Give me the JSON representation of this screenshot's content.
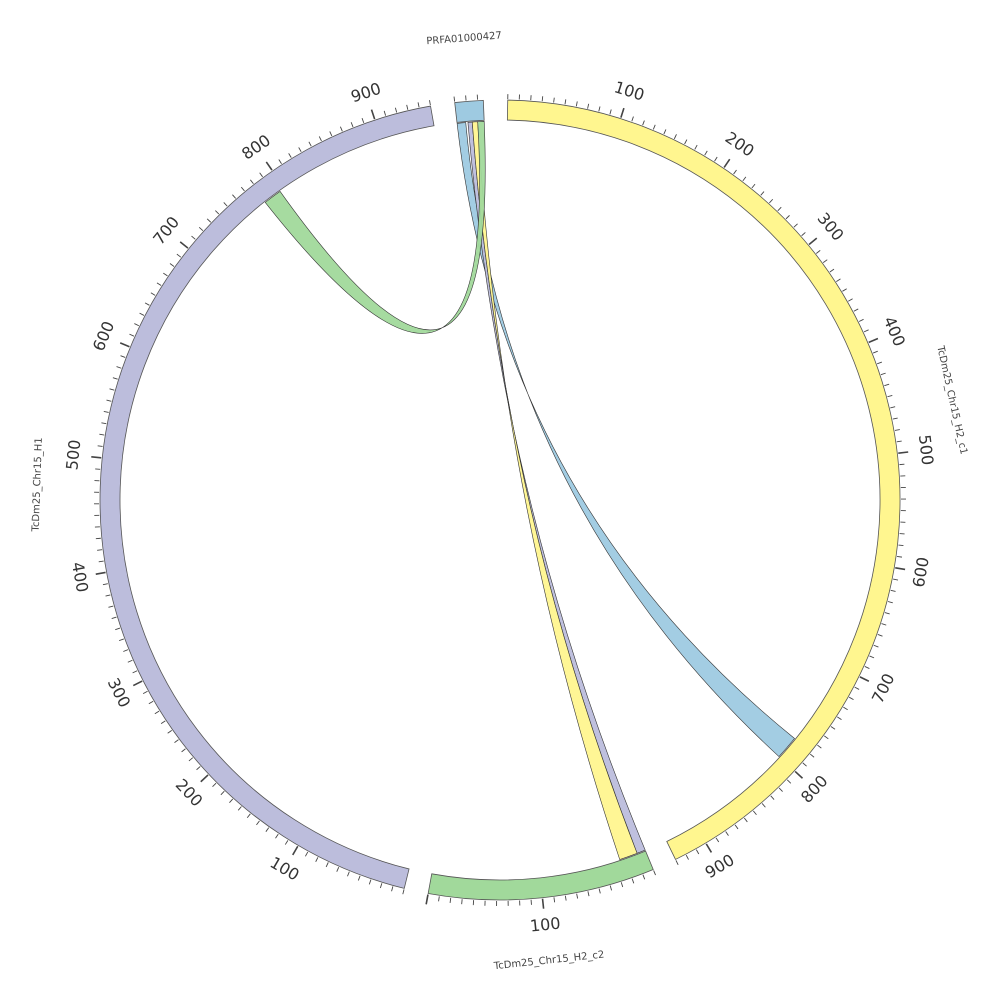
{
  "chart_data": {
    "type": "chord",
    "segments": [
      {
        "id": "prfa",
        "name": "PRFA01000427",
        "length": 25,
        "color": "#9ECAE1"
      },
      {
        "id": "h2c1",
        "name": "TcDm25_Chr15_H2_c1",
        "length": 930,
        "color": "#FFF68F",
        "major_ticks": [
          100,
          200,
          300,
          400,
          500,
          600,
          700,
          800,
          900
        ]
      },
      {
        "id": "h2c2",
        "name": "TcDm25_Chr15_H2_c2",
        "length": 200,
        "color": "#A1D99B",
        "major_ticks": [
          100
        ]
      },
      {
        "id": "h1",
        "name": "TcDm25_Chr15_H1",
        "length": 950,
        "color": "#BCBDDC",
        "major_ticks": [
          100,
          200,
          300,
          400,
          500,
          600,
          700,
          800,
          900
        ]
      }
    ],
    "links": [
      {
        "from": "prfa",
        "from_range": [
          0,
          8
        ],
        "to": "h2c1",
        "to_range": [
          778,
          800
        ],
        "color": "#9ECAE1"
      },
      {
        "from": "prfa",
        "from_range": [
          10,
          14
        ],
        "to": "h2c2",
        "to_range": [
          0,
          8
        ],
        "color": "#BCBDDC"
      },
      {
        "from": "prfa",
        "from_range": [
          14,
          19
        ],
        "to": "h2c2",
        "to_range": [
          8,
          25
        ],
        "color": "#FFF68F"
      },
      {
        "from": "prfa",
        "from_range": [
          19,
          25
        ],
        "to": "h1",
        "to_range": [
          778,
          795
        ],
        "color": "#A1D99B"
      }
    ]
  }
}
